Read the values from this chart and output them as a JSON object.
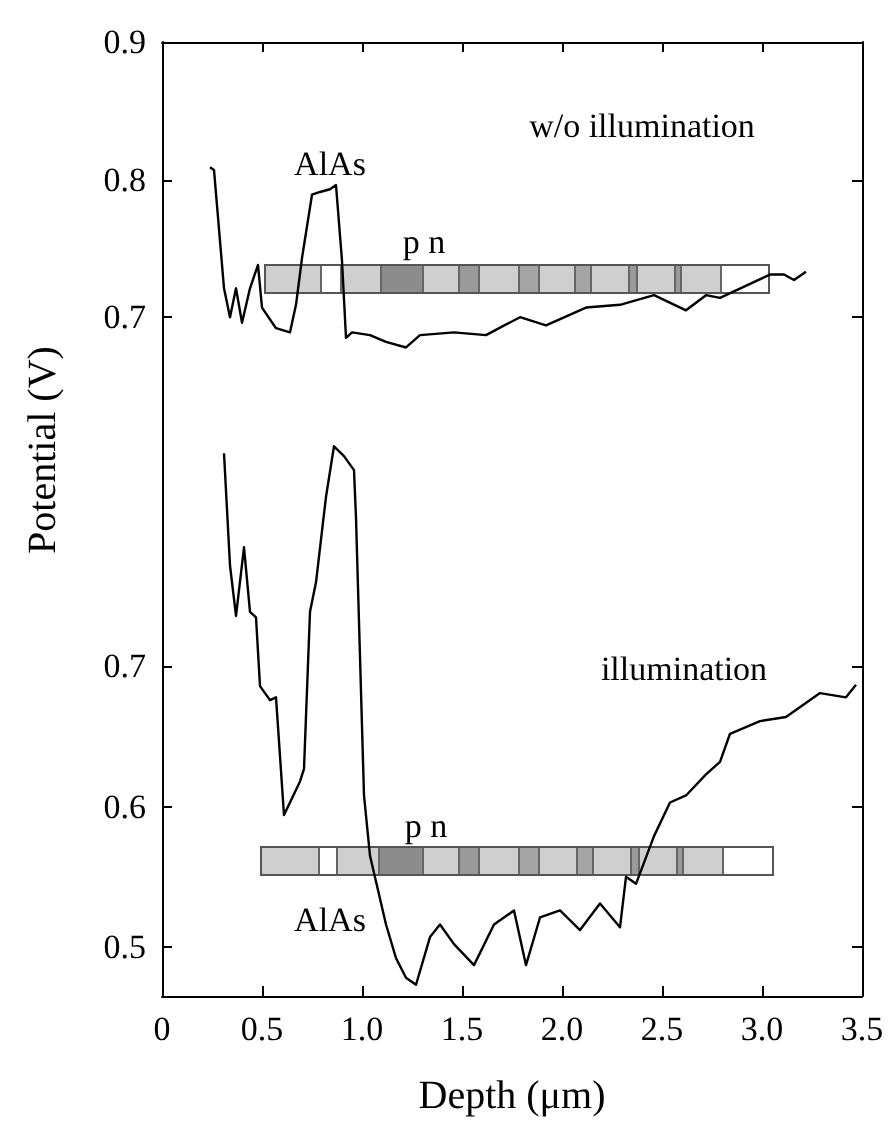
{
  "chart_data": [
    {
      "type": "line",
      "xlim": [
        0,
        3.5
      ],
      "xticks": [
        0,
        0.5,
        1,
        1.5,
        2,
        2.5,
        3,
        3.5
      ],
      "ylim": [
        0.65,
        0.9
      ],
      "yticks": [
        0.7,
        0.8,
        0.9
      ],
      "tick_labels": "y",
      "marker": "none",
      "line_style": "solid",
      "annotations": [
        "w/o illumination",
        "AlAs",
        "p n"
      ],
      "series": [
        {
          "color": "#000000",
          "x": [
            0.24,
            0.26,
            0.31,
            0.34,
            0.37,
            0.4,
            0.44,
            0.48,
            0.5,
            0.57,
            0.64,
            0.67,
            0.7,
            0.75,
            0.79,
            0.84,
            0.87,
            0.9,
            0.92,
            0.95,
            1.04,
            1.12,
            1.22,
            1.29,
            1.46,
            1.62,
            1.79,
            1.92,
            2.12,
            2.29,
            2.46,
            2.62,
            2.72,
            2.79,
            3.04,
            3.11,
            3.16,
            3.22
          ],
          "values": [
            0.809,
            0.807,
            0.721,
            0.7,
            0.721,
            0.696,
            0.721,
            0.738,
            0.707,
            0.692,
            0.689,
            0.709,
            0.743,
            0.789,
            0.791,
            0.793,
            0.796,
            0.741,
            0.685,
            0.689,
            0.687,
            0.682,
            0.678,
            0.687,
            0.689,
            0.687,
            0.7,
            0.694,
            0.707,
            0.709,
            0.716,
            0.705,
            0.716,
            0.714,
            0.731,
            0.731,
            0.727,
            0.733
          ]
        }
      ]
    },
    {
      "type": "line",
      "xlabel": "Depth (μm)",
      "ylabel": "Potential (V)",
      "xlim": [
        0,
        3.5
      ],
      "xticks": [
        0,
        0.5,
        {
          "value": 1,
          "label": "1.0"
        },
        1.5,
        {
          "value": 2,
          "label": "2.0"
        },
        2.5,
        {
          "value": 3,
          "label": "3.0"
        },
        3.5
      ],
      "ylim": [
        0.465,
        0.9
      ],
      "yticks": [
        0.5,
        0.6,
        0.7
      ],
      "marker": "none",
      "line_style": "solid",
      "annotations": [
        "illumination",
        "p n",
        "AlAs"
      ],
      "series": [
        {
          "color": "#000000",
          "x": [
            0.31,
            0.34,
            0.37,
            0.41,
            0.44,
            0.47,
            0.49,
            0.54,
            0.57,
            0.61,
            0.69,
            0.71,
            0.74,
            0.77,
            0.82,
            0.86,
            0.91,
            0.96,
            0.97,
            1.01,
            1.04,
            1.12,
            1.17,
            1.22,
            1.27,
            1.34,
            1.39,
            1.46,
            1.56,
            1.66,
            1.76,
            1.82,
            1.89,
            1.99,
            2.09,
            2.19,
            2.29,
            2.32,
            2.37,
            2.46,
            2.54,
            2.62,
            2.72,
            2.79,
            2.84,
            2.99,
            3.12,
            3.29,
            3.42,
            3.47
          ],
          "values": [
            0.852,
            0.772,
            0.736,
            0.785,
            0.739,
            0.735,
            0.686,
            0.676,
            0.678,
            0.594,
            0.618,
            0.627,
            0.739,
            0.76,
            0.821,
            0.857,
            0.85,
            0.84,
            0.806,
            0.608,
            0.565,
            0.516,
            0.492,
            0.478,
            0.473,
            0.507,
            0.516,
            0.502,
            0.487,
            0.516,
            0.526,
            0.487,
            0.521,
            0.526,
            0.512,
            0.531,
            0.514,
            0.55,
            0.545,
            0.579,
            0.603,
            0.608,
            0.623,
            0.632,
            0.652,
            0.661,
            0.664,
            0.681,
            0.678,
            0.687
          ]
        }
      ]
    }
  ]
}
